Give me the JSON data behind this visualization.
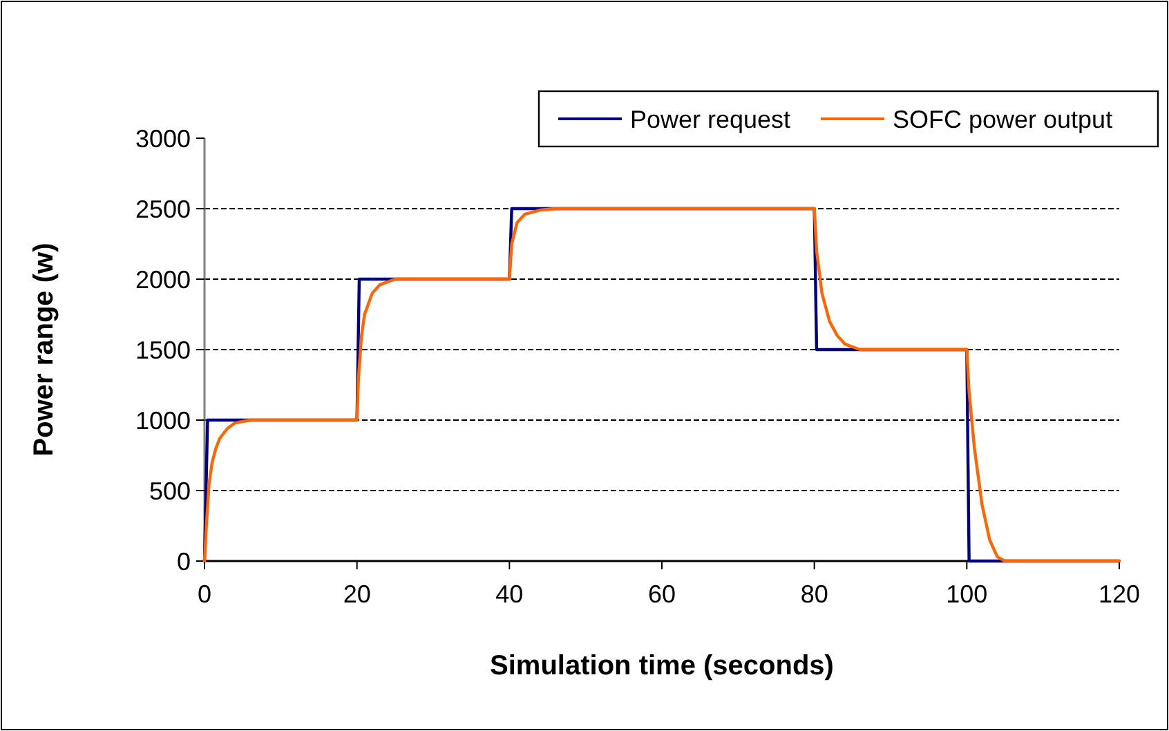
{
  "chart_data": {
    "type": "line",
    "xlabel": "Simulation time (seconds)",
    "ylabel": "Power range (w)",
    "xlim": [
      0,
      120
    ],
    "xticks": [
      0,
      20,
      40,
      60,
      80,
      100,
      120
    ],
    "ylim": [
      0,
      3000
    ],
    "yticks": [
      0,
      500,
      1000,
      1500,
      2000,
      2500,
      3000
    ],
    "grid": "y",
    "legend": "top right",
    "marker": "none",
    "line_style": "solid",
    "series": [
      {
        "name": "Power request",
        "color": "#000080",
        "x": [
          0,
          0.4,
          20,
          20.3,
          40,
          40.3,
          80,
          80.3,
          100,
          100.3,
          120
        ],
        "values": [
          0,
          1000,
          1000,
          2000,
          2000,
          2500,
          2500,
          1500,
          1500,
          0,
          0
        ]
      },
      {
        "name": "SOFC power output",
        "color": "#ff6600",
        "x": [
          0,
          0.3,
          0.6,
          1,
          1.5,
          2,
          3,
          4,
          6,
          20,
          20.2,
          20.6,
          21,
          22,
          23,
          25,
          40,
          40.3,
          41,
          42,
          44,
          46,
          80,
          80.3,
          81,
          82,
          83,
          84,
          86,
          100,
          100.3,
          101,
          102,
          103,
          104,
          105,
          120
        ],
        "values": [
          0,
          300,
          550,
          700,
          800,
          870,
          940,
          980,
          1000,
          1000,
          1300,
          1600,
          1750,
          1900,
          1960,
          2000,
          2000,
          2250,
          2400,
          2460,
          2490,
          2500,
          2500,
          2200,
          1900,
          1700,
          1600,
          1540,
          1500,
          1500,
          1200,
          800,
          400,
          150,
          30,
          0,
          0
        ]
      }
    ]
  }
}
